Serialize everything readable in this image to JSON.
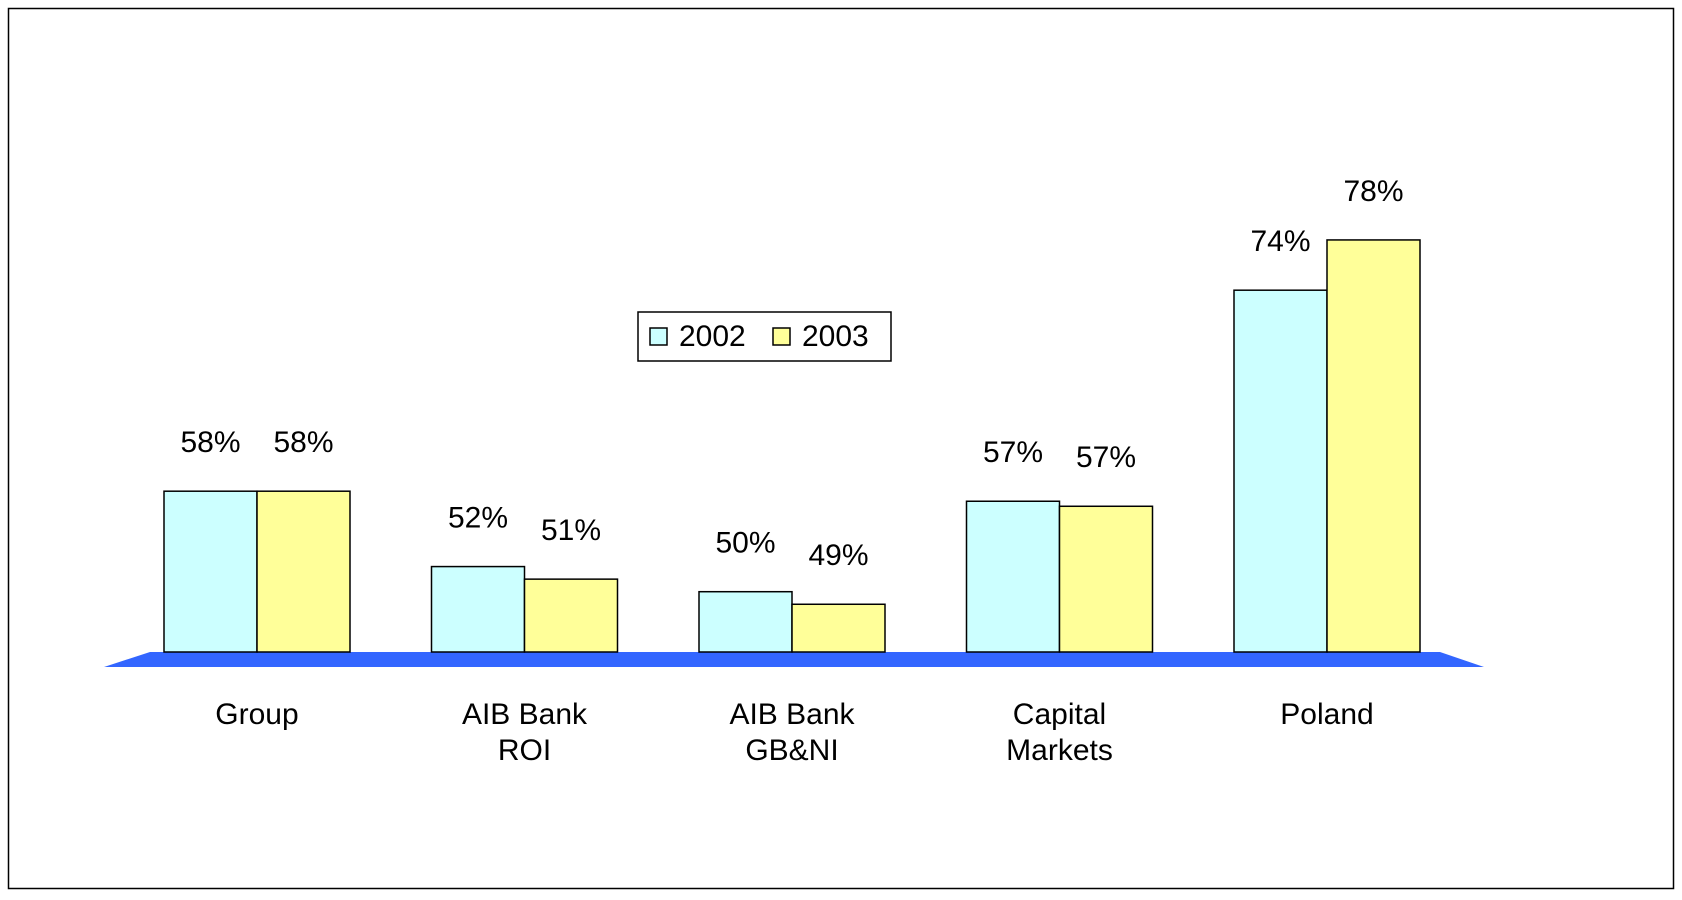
{
  "chart_data": {
    "type": "bar",
    "categories": [
      "Group",
      "AIB Bank ROI",
      "AIB Bank GB&NI",
      "Capital Markets",
      "Poland"
    ],
    "series": [
      {
        "name": "2002",
        "color": "#ccffff",
        "values": [
          58,
          52,
          50,
          57.2,
          74
        ],
        "value_labels": [
          "58%",
          "52%",
          "50%",
          "57%",
          "74%"
        ]
      },
      {
        "name": "2003",
        "color": "#ffff99",
        "values": [
          58,
          51,
          49,
          56.8,
          78
        ],
        "value_labels": [
          "58%",
          "51%",
          "49%",
          "57%",
          "78%"
        ]
      }
    ],
    "ylim": [
      45.2,
      85
    ],
    "floor_color": "#3366ff",
    "legend": "center"
  }
}
